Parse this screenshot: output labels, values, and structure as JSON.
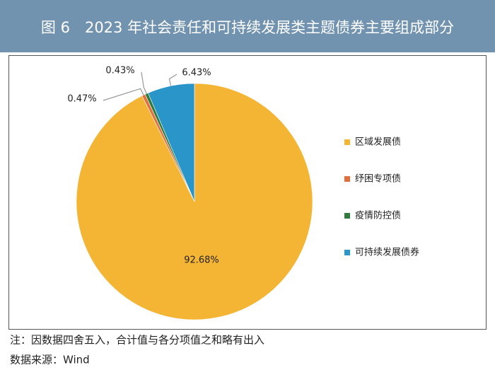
{
  "chart_data": {
    "type": "pie",
    "title": "图 6　2023 年社会责任和可持续发展类主题债券主要组成部分",
    "categories": [
      "区域发展债",
      "纾困专项债",
      "疫情防控债",
      "可持续发展债券"
    ],
    "values": [
      92.68,
      0.47,
      0.43,
      6.43
    ],
    "value_labels": [
      "92.68%",
      "0.47%",
      "0.43%",
      "6.43%"
    ],
    "colors": [
      "#f4b434",
      "#e2703e",
      "#2e7a3c",
      "#2a95c9"
    ],
    "legend": "right"
  },
  "notes": [
    "注：因数据四舍五入，合计值与各分项值之和略有出入",
    "数据来源：Wind"
  ]
}
